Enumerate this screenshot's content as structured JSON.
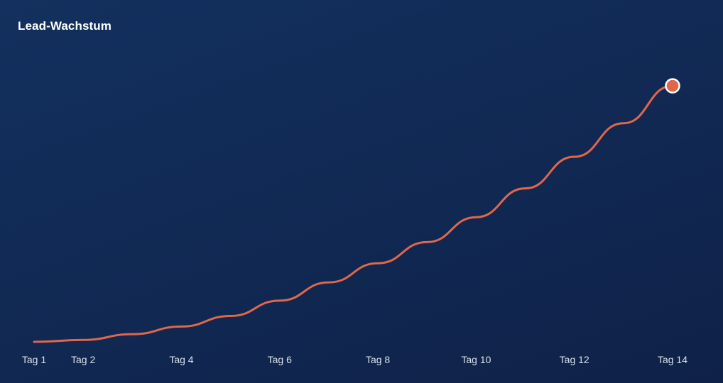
{
  "chart_data": {
    "type": "line",
    "title": "Lead-Wachstum",
    "x": [
      1,
      2,
      3,
      4,
      5,
      6,
      7,
      8,
      9,
      10,
      11,
      12,
      13,
      14
    ],
    "tick_labels": [
      {
        "x": 1,
        "label": "Tag 1"
      },
      {
        "x": 2,
        "label": "Tag 2"
      },
      {
        "x": 4,
        "label": "Tag 4"
      },
      {
        "x": 6,
        "label": "Tag 6"
      },
      {
        "x": 8,
        "label": "Tag 8"
      },
      {
        "x": 10,
        "label": "Tag 10"
      },
      {
        "x": 12,
        "label": "Tag 12"
      },
      {
        "x": 14,
        "label": "Tag 14"
      }
    ],
    "series": [
      {
        "values": [
          0,
          2,
          8,
          16,
          27,
          43,
          62,
          82,
          104,
          130,
          160,
          193,
          228,
          267
        ],
        "color": "#e0674a"
      }
    ],
    "ylim": [
      0,
      267
    ],
    "xlim": [
      1,
      14
    ],
    "grid": false,
    "legend": "none",
    "end_marker": true,
    "colors": {
      "line": "#e0674a",
      "marker_stroke": "#ffffff"
    }
  }
}
